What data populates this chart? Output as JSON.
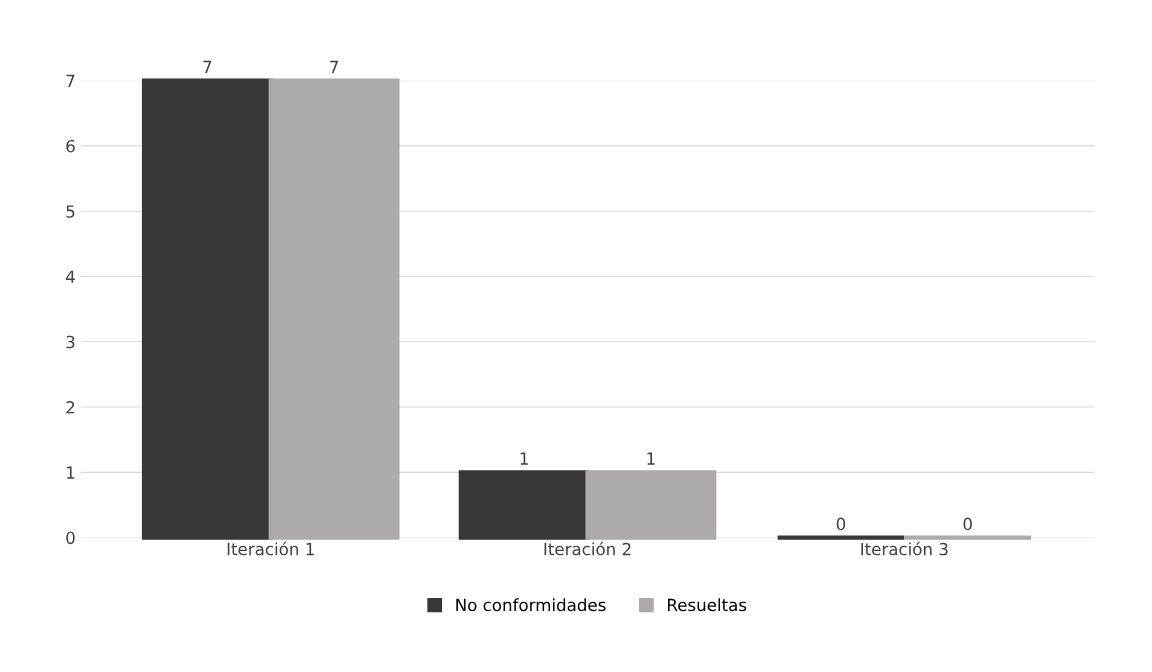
{
  "chart_data": {
    "type": "bar",
    "categories": [
      "Iteración 1",
      "Iteración 2",
      "Iteración 3"
    ],
    "series": [
      {
        "name": "No conformidades",
        "color": "#383636",
        "values": [
          7,
          1,
          0
        ]
      },
      {
        "name": "Resueltas",
        "color": "#aeaaaa",
        "values": [
          7,
          1,
          0
        ]
      }
    ],
    "ylim": [
      0,
      7
    ],
    "yticks": [
      0,
      1,
      2,
      3,
      4,
      5,
      6,
      7
    ],
    "grid": "y",
    "legend": "bottom",
    "data_labels": true
  }
}
